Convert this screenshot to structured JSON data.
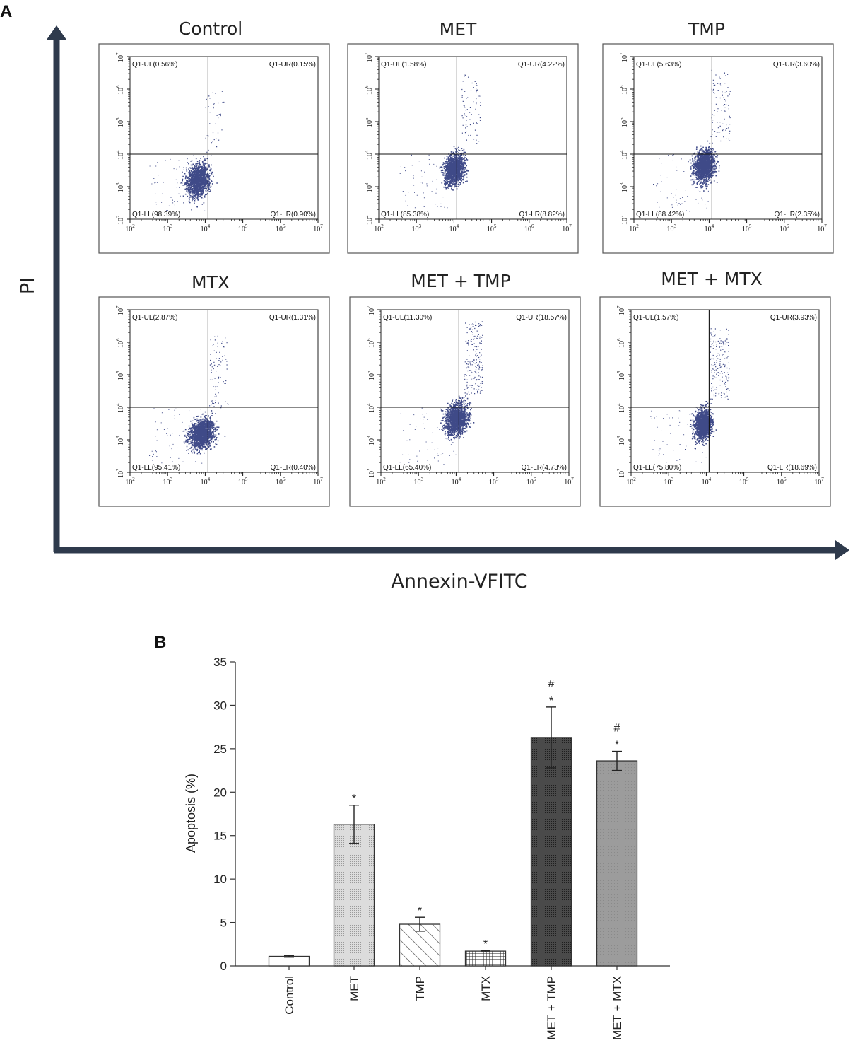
{
  "panel_labels": {
    "a": "A",
    "b": "B"
  },
  "colors": {
    "axis_arrow": "#2e3a4c",
    "scatter": "#3f4a88",
    "panel_border": "#555555",
    "bar_stroke": "#333333"
  },
  "chart_data": [
    {
      "type": "scatter",
      "x_axis_label": "Annexin-VFITC",
      "y_axis_label": "PI",
      "tick_exponents": [
        2,
        3,
        4,
        5,
        6,
        7
      ],
      "tick_base": "10",
      "plots": [
        {
          "title": "Control",
          "quadrants": {
            "ul": "Q1-UL(0.56%)",
            "ur": "Q1-UR(0.15%)",
            "ll": "Q1-LL(98.39%)",
            "lr": "Q1-LR(0.90%)"
          }
        },
        {
          "title": "MET",
          "quadrants": {
            "ul": "Q1-UL(1.58%)",
            "ur": "Q1-UR(4.22%)",
            "ll": "Q1-LL(85.38%)",
            "lr": "Q1-LR(8.82%)"
          }
        },
        {
          "title": "TMP",
          "quadrants": {
            "ul": "Q1-UL(5.63%)",
            "ur": "Q1-UR(3.60%)",
            "ll": "Q1-LL(88.42%)",
            "lr": "Q1-LR(2.35%)"
          }
        },
        {
          "title": "MTX",
          "quadrants": {
            "ul": "Q1-UL(2.87%)",
            "ur": "Q1-UR(1.31%)",
            "ll": "Q1-LL(95.41%)",
            "lr": "Q1-LR(0.40%)"
          }
        },
        {
          "title": "MET + TMP",
          "quadrants": {
            "ul": "Q1-UL(11.30%)",
            "ur": "Q1-UR(18.57%)",
            "ll": "Q1-LL(65.40%)",
            "lr": "Q1-LR(4.73%)"
          }
        },
        {
          "title": "MET + MTX",
          "quadrants": {
            "ul": "Q1-UL(1.57%)",
            "ur": "Q1-UR(3.93%)",
            "ll": "Q1-LL(75.80%)",
            "lr": "Q1-LR(18.69%)"
          }
        }
      ]
    },
    {
      "type": "bar",
      "categories": [
        "Control",
        "MET",
        "TMP",
        "MTX",
        "MET + TMP",
        "MET + MTX"
      ],
      "values": [
        1.1,
        16.3,
        4.8,
        1.7,
        26.3,
        23.6
      ],
      "errors": [
        0.1,
        2.2,
        0.8,
        0.1,
        3.5,
        1.1
      ],
      "fills": [
        "white",
        "light-dots",
        "diagonal-hatch",
        "grid",
        "dark-dots",
        "gray"
      ],
      "annotations": [
        "",
        "*",
        "*",
        "*",
        "#\n*",
        "#\n*"
      ],
      "ylabel": "Apoptosis (%)",
      "xlabel": "",
      "ylim": [
        0,
        35
      ],
      "yticks": [
        0,
        5,
        10,
        15,
        20,
        25,
        30,
        35
      ]
    }
  ]
}
